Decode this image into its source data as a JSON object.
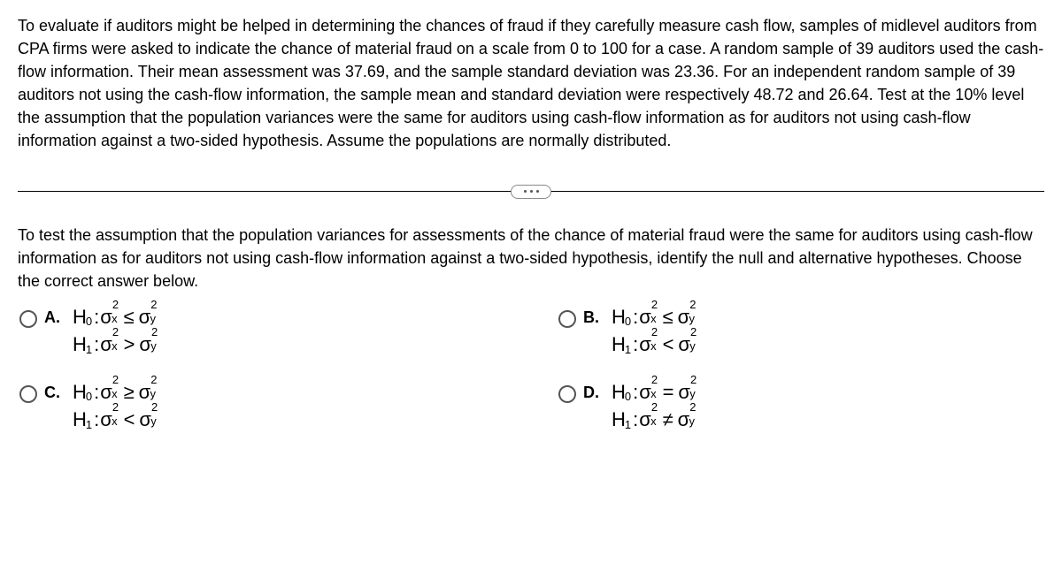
{
  "problem": "To evaluate if auditors might be helped in determining the chances of fraud if they carefully measure cash flow, samples of midlevel auditors from CPA firms were asked to indicate the chance of material fraud on a scale from 0 to 100 for a case. A random sample of 39 auditors used the cash-flow information. Their mean assessment was 37.69, and the sample standard deviation was 23.36. For an independent random sample of 39 auditors not using the cash-flow information, the sample mean and standard deviation were respectively 48.72 and 26.64. Test at the 10% level the assumption that the population variances were the same for auditors using cash-flow information as for auditors not using cash-flow information against a two-sided hypothesis. Assume the populations are normally distributed.",
  "question": "To test the assumption that the population variances for assessments of the chance of material fraud were the same for auditors using cash-flow information as for auditors not using cash-flow information against a two-sided hypothesis, identify the null and alternative hypotheses. Choose the correct answer below.",
  "options": {
    "A": {
      "label": "A.",
      "h0_rel": "≤",
      "h1_rel": ">"
    },
    "B": {
      "label": "B.",
      "h0_rel": "≤",
      "h1_rel": "<"
    },
    "C": {
      "label": "C.",
      "h0_rel": "≥",
      "h1_rel": "<"
    },
    "D": {
      "label": "D.",
      "h0_rel": "=",
      "h1_rel": "≠"
    }
  },
  "symbols": {
    "H": "H",
    "zero": "0",
    "one": "1",
    "colon": ": ",
    "sigma": "σ",
    "sq": "2",
    "x": "x",
    "y": "y"
  },
  "style": {
    "body_fontsize": 18,
    "math_fontsize": 22,
    "text_color": "#000000",
    "radio_border": "#555555",
    "background": "#ffffff"
  }
}
